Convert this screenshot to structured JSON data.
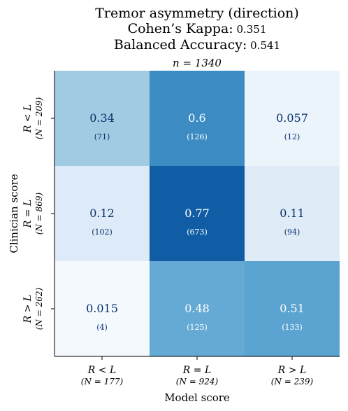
{
  "chart_data": {
    "type": "heatmap",
    "title_lines": [
      {
        "label": "Tremor asymmetry (direction)",
        "value": ""
      },
      {
        "label": "Cohen’s Kappa:",
        "value": "0.351"
      },
      {
        "label": "Balanced Accuracy:",
        "value": "0.541"
      }
    ],
    "n_label": "n = 1340",
    "xlabel": "Model score",
    "ylabel": "Clinician score",
    "x_categories": [
      {
        "label": "R < L",
        "sub": "(N = 177)"
      },
      {
        "label": "R = L",
        "sub": "(N = 924)"
      },
      {
        "label": "R > L",
        "sub": "(N = 239)"
      }
    ],
    "y_categories": [
      {
        "label": "R < L",
        "sub": "(N = 209)"
      },
      {
        "label": "R = L",
        "sub": "(N = 869)"
      },
      {
        "label": "R > L",
        "sub": "(N = 262)"
      }
    ],
    "values": [
      [
        0.34,
        0.6,
        0.057
      ],
      [
        0.12,
        0.77,
        0.11
      ],
      [
        0.015,
        0.48,
        0.51
      ]
    ],
    "value_labels": [
      [
        "0.34",
        "0.6",
        "0.057"
      ],
      [
        "0.12",
        "0.77",
        "0.11"
      ],
      [
        "0.015",
        "0.48",
        "0.51"
      ]
    ],
    "counts": [
      [
        "(71)",
        "(126)",
        "(12)"
      ],
      [
        "(102)",
        "(673)",
        "(94)"
      ],
      [
        "(4)",
        "(125)",
        "(133)"
      ]
    ],
    "colormap": "Blues",
    "vmin": 0,
    "vmax": 0.77,
    "text_color_dark": "#08306b",
    "text_color_light": "#ffffff"
  }
}
